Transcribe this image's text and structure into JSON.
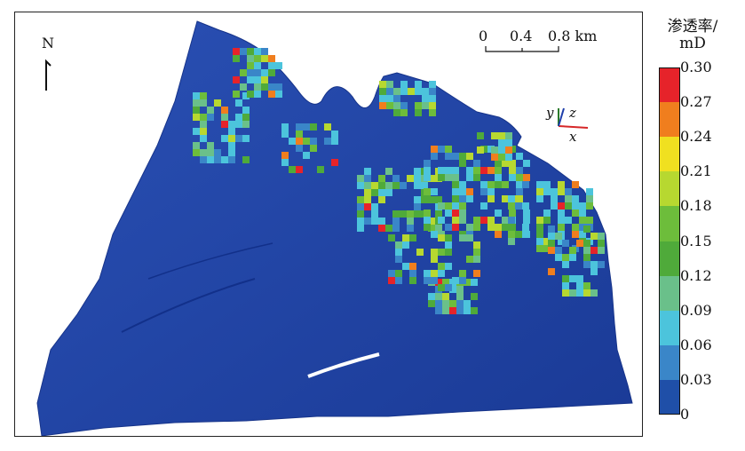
{
  "legend": {
    "title_line1": "渗透率/",
    "title_line2": "mD",
    "ticks": [
      "0.30",
      "0.27",
      "0.24",
      "0.21",
      "0.18",
      "0.15",
      "0.12",
      "0.09",
      "0.06",
      "0.03",
      "0"
    ],
    "colors": [
      "#e6232a",
      "#f07e1e",
      "#f0e020",
      "#b7d830",
      "#6dbd3b",
      "#4faa3a",
      "#6ac08a",
      "#4cc4dc",
      "#3a86c8",
      "#1f4fa8"
    ]
  },
  "map": {
    "north_label": "N",
    "scale": {
      "labels": [
        "0",
        "0.4",
        "0.8 km"
      ]
    },
    "axes": {
      "y": "y",
      "z": "z",
      "x": "x"
    },
    "base_color": "#1f43a8"
  }
}
